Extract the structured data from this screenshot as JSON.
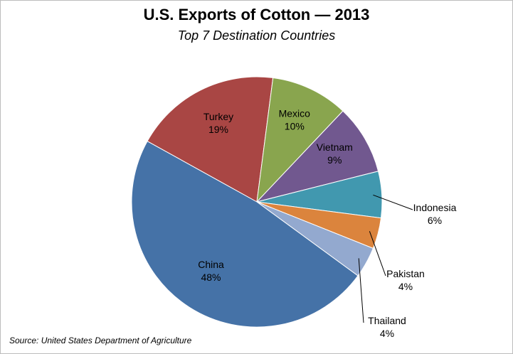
{
  "chart_data": {
    "type": "pie",
    "title": "U.S. Exports of Cotton — 2013",
    "subtitle": "Top 7 Destination Countries",
    "source": "Source: United States Department of Agriculture",
    "slices": [
      {
        "label": "Turkey",
        "value": 19,
        "display": "19%",
        "color": "#a94644"
      },
      {
        "label": "Mexico",
        "value": 10,
        "display": "10%",
        "color": "#89a54e"
      },
      {
        "label": "Vietnam",
        "value": 9,
        "display": "9%",
        "color": "#71588f"
      },
      {
        "label": "Indonesia",
        "value": 6,
        "display": "6%",
        "color": "#4198af"
      },
      {
        "label": "Pakistan",
        "value": 4,
        "display": "4%",
        "color": "#db843d"
      },
      {
        "label": "Thailand",
        "value": 4,
        "display": "4%",
        "color": "#93a9cf"
      },
      {
        "label": "China",
        "value": 48,
        "display": "48%",
        "color": "#4572a7"
      }
    ]
  }
}
